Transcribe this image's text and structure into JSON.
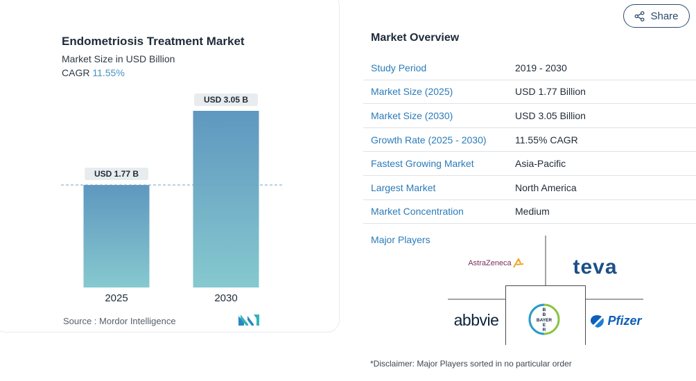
{
  "chart_data": {
    "type": "bar",
    "title": "Endometriosis Treatment Market",
    "subtitle": "Market Size in USD Billion",
    "cagr_label": "CAGR",
    "cagr_value": "11.55%",
    "categories": [
      "2025",
      "2030"
    ],
    "values": [
      1.77,
      3.05
    ],
    "data_labels": [
      "USD 1.77 B",
      "USD 3.05 B"
    ],
    "ylim": [
      0,
      3.05
    ],
    "reference_line_value": 1.77,
    "colors": {
      "bar_top": "#5f97bf",
      "bar_bottom": "#86c9cf",
      "dash": "#6fa3c8",
      "label_bg": "#e8ecef"
    }
  },
  "source": "Source :  Mordor Intelligence",
  "share_button": {
    "label": "Share",
    "icon": "share-icon"
  },
  "overview": {
    "title": "Market Overview",
    "rows": [
      {
        "key": "Study Period",
        "value": "2019 - 2030"
      },
      {
        "key": "Market Size (2025)",
        "value": "USD 1.77 Billion"
      },
      {
        "key": "Market Size (2030)",
        "value": "USD 3.05 Billion"
      },
      {
        "key": "Growth Rate (2025 - 2030)",
        "value": "11.55% CAGR"
      },
      {
        "key": "Fastest Growing Market",
        "value": "Asia-Pacific"
      },
      {
        "key": "Largest Market",
        "value": "North America"
      },
      {
        "key": "Market Concentration",
        "value": "Medium"
      }
    ],
    "players_label": "Major Players",
    "players": [
      "AstraZeneca",
      "teva",
      "abbvie",
      "BAYER",
      "Pfizer"
    ]
  },
  "disclaimer": "*Disclaimer: Major Players sorted in no particular order",
  "colors": {
    "link_blue": "#2b7bb9",
    "brand_navy": "#2a4a6b"
  }
}
